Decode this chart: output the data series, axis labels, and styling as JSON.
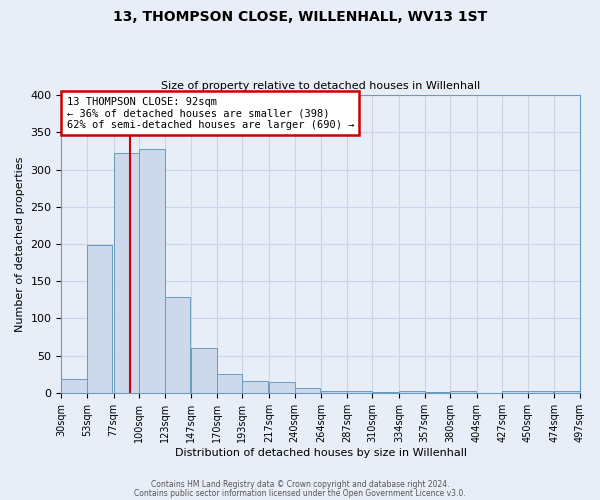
{
  "title": "13, THOMPSON CLOSE, WILLENHALL, WV13 1ST",
  "subtitle": "Size of property relative to detached houses in Willenhall",
  "xlabel": "Distribution of detached houses by size in Willenhall",
  "ylabel": "Number of detached properties",
  "bar_left_edges": [
    30,
    53,
    77,
    100,
    123,
    147,
    170,
    193,
    217,
    240,
    264,
    287,
    310,
    334,
    357,
    380,
    404,
    427,
    450,
    474
  ],
  "bar_heights": [
    18,
    198,
    322,
    328,
    129,
    60,
    25,
    16,
    14,
    6,
    2,
    3,
    1,
    3,
    1,
    2,
    0,
    2,
    3,
    3
  ],
  "bin_width": 23,
  "bar_facecolor": "#cdd9ea",
  "bar_edgecolor": "#6a9cc0",
  "vline_x": 92,
  "vline_color": "#cc0000",
  "ylim": [
    0,
    400
  ],
  "yticks": [
    0,
    50,
    100,
    150,
    200,
    250,
    300,
    350,
    400
  ],
  "xtick_labels": [
    "30sqm",
    "53sqm",
    "77sqm",
    "100sqm",
    "123sqm",
    "147sqm",
    "170sqm",
    "193sqm",
    "217sqm",
    "240sqm",
    "264sqm",
    "287sqm",
    "310sqm",
    "334sqm",
    "357sqm",
    "380sqm",
    "404sqm",
    "427sqm",
    "450sqm",
    "474sqm",
    "497sqm"
  ],
  "annotation_title": "13 THOMPSON CLOSE: 92sqm",
  "annotation_line1": "← 36% of detached houses are smaller (398)",
  "annotation_line2": "62% of semi-detached houses are larger (690) →",
  "annotation_box_facecolor": "#ffffff",
  "annotation_box_edgecolor": "#cc0000",
  "grid_color": "#c8d4e8",
  "plot_bg_color": "#e8eef8",
  "fig_bg_color": "#e8eef8",
  "footer1": "Contains HM Land Registry data © Crown copyright and database right 2024.",
  "footer2": "Contains public sector information licensed under the Open Government Licence v3.0.",
  "title_fontsize": 10,
  "subtitle_fontsize": 8,
  "ylabel_fontsize": 8,
  "xlabel_fontsize": 8,
  "ytick_fontsize": 8,
  "xtick_fontsize": 7
}
